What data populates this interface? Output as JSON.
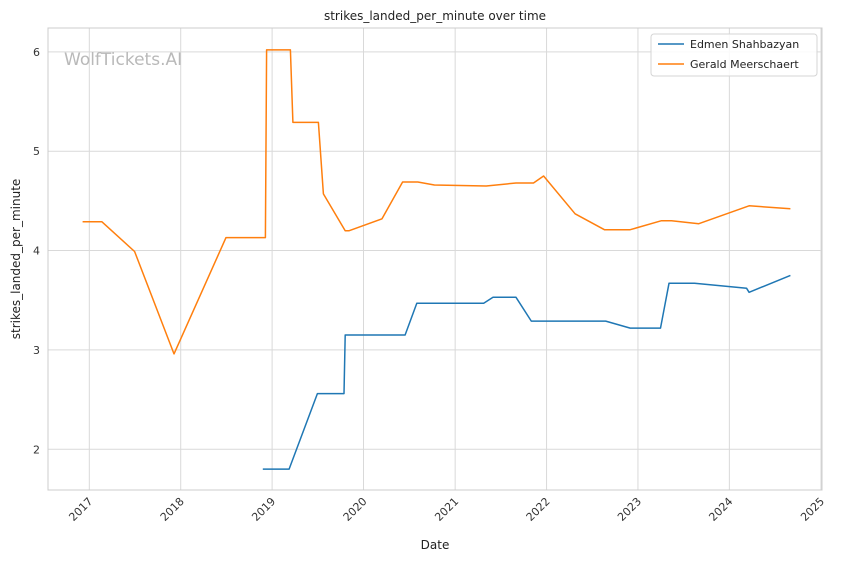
{
  "chart_data": {
    "type": "line",
    "title": "strikes_landed_per_minute over time",
    "xlabel": "Date",
    "ylabel": "strikes_landed_per_minute",
    "watermark": "WolfTickets.AI",
    "x_ticks": [
      "2017",
      "2018",
      "2019",
      "2020",
      "2021",
      "2022",
      "2023",
      "2024",
      "2025"
    ],
    "y_ticks": [
      2,
      3,
      4,
      5,
      6
    ],
    "xlim": [
      "2016-07-20",
      "2025-01-05"
    ],
    "ylim": [
      1.59,
      6.24
    ],
    "grid": true,
    "legend_position": "top-right",
    "series": [
      {
        "name": "Edmen Shahbazyan",
        "color": "#1f77b4",
        "points": [
          [
            "2018-11-25",
            1.8
          ],
          [
            "2019-03-10",
            1.8
          ],
          [
            "2019-07-01",
            2.56
          ],
          [
            "2019-10-15",
            2.56
          ],
          [
            "2019-10-20",
            3.15
          ],
          [
            "2020-06-15",
            3.15
          ],
          [
            "2020-08-01",
            3.47
          ],
          [
            "2021-04-25",
            3.47
          ],
          [
            "2021-06-01",
            3.53
          ],
          [
            "2021-09-01",
            3.53
          ],
          [
            "2021-11-01",
            3.29
          ],
          [
            "2022-08-25",
            3.29
          ],
          [
            "2022-12-01",
            3.22
          ],
          [
            "2023-04-01",
            3.22
          ],
          [
            "2023-05-05",
            3.67
          ],
          [
            "2023-08-15",
            3.67
          ],
          [
            "2024-03-10",
            3.62
          ],
          [
            "2024-03-20",
            3.58
          ],
          [
            "2024-09-01",
            3.75
          ]
        ]
      },
      {
        "name": "Gerald Meerschaert",
        "color": "#ff7f0e",
        "points": [
          [
            "2016-12-05",
            4.29
          ],
          [
            "2017-02-20",
            4.29
          ],
          [
            "2017-07-01",
            3.99
          ],
          [
            "2017-12-05",
            2.96
          ],
          [
            "2018-07-01",
            4.13
          ],
          [
            "2018-12-05",
            4.13
          ],
          [
            "2018-12-10",
            6.02
          ],
          [
            "2019-03-15",
            6.02
          ],
          [
            "2019-03-25",
            5.29
          ],
          [
            "2019-07-05",
            5.29
          ],
          [
            "2019-07-25",
            4.57
          ],
          [
            "2019-10-20",
            4.2
          ],
          [
            "2019-11-05",
            4.2
          ],
          [
            "2020-03-15",
            4.32
          ],
          [
            "2020-06-05",
            4.69
          ],
          [
            "2020-08-05",
            4.69
          ],
          [
            "2020-10-10",
            4.66
          ],
          [
            "2021-05-05",
            4.65
          ],
          [
            "2021-09-01",
            4.68
          ],
          [
            "2021-11-10",
            4.68
          ],
          [
            "2021-12-20",
            4.75
          ],
          [
            "2022-04-25",
            4.37
          ],
          [
            "2022-08-20",
            4.21
          ],
          [
            "2022-12-01",
            4.21
          ],
          [
            "2023-04-05",
            4.3
          ],
          [
            "2023-05-15",
            4.3
          ],
          [
            "2023-09-01",
            4.27
          ],
          [
            "2024-03-20",
            4.45
          ],
          [
            "2024-09-01",
            4.42
          ]
        ]
      }
    ]
  }
}
